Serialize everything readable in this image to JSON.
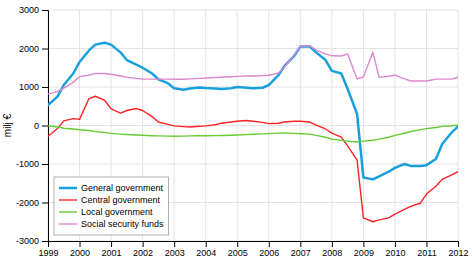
{
  "chart_data": {
    "type": "line",
    "ylabel": "milj €",
    "x": [
      1999.0,
      1999.3,
      1999.5,
      1999.8,
      2000.0,
      2000.3,
      2000.5,
      2000.8,
      2001.0,
      2001.3,
      2001.5,
      2001.8,
      2002.0,
      2002.3,
      2002.5,
      2002.8,
      2003.0,
      2003.3,
      2003.5,
      2003.8,
      2004.0,
      2004.3,
      2004.5,
      2004.8,
      2005.0,
      2005.3,
      2005.5,
      2005.8,
      2006.0,
      2006.3,
      2006.5,
      2006.8,
      2007.0,
      2007.3,
      2007.5,
      2007.8,
      2008.0,
      2008.3,
      2008.5,
      2008.8,
      2009.0,
      2009.3,
      2009.5,
      2009.8,
      2010.0,
      2010.3,
      2010.5,
      2010.8,
      2011.0,
      2011.3,
      2011.5,
      2011.8,
      2012.0
    ],
    "series": [
      {
        "name": "General government",
        "color": "#1a9fde",
        "values": [
          530,
          750,
          1050,
          1350,
          1650,
          1950,
          2100,
          2150,
          2100,
          1900,
          1700,
          1580,
          1500,
          1350,
          1200,
          1100,
          970,
          930,
          960,
          990,
          975,
          960,
          950,
          970,
          1000,
          980,
          970,
          980,
          1050,
          1300,
          1550,
          1800,
          2050,
          2050,
          1900,
          1700,
          1420,
          1350,
          950,
          300,
          -1350,
          -1400,
          -1320,
          -1200,
          -1100,
          -1000,
          -1050,
          -1050,
          -1030,
          -870,
          -480,
          -180,
          -30
        ]
      },
      {
        "name": "Central government",
        "color": "#ff2222",
        "values": [
          -280,
          -80,
          120,
          180,
          160,
          700,
          760,
          650,
          430,
          320,
          390,
          440,
          390,
          230,
          90,
          30,
          -10,
          -30,
          -40,
          -20,
          -10,
          20,
          60,
          90,
          110,
          130,
          110,
          80,
          50,
          60,
          90,
          110,
          110,
          90,
          10,
          -90,
          -200,
          -300,
          -530,
          -900,
          -2400,
          -2500,
          -2450,
          -2400,
          -2300,
          -2180,
          -2100,
          -2020,
          -1780,
          -1580,
          -1400,
          -1280,
          -1200
        ]
      },
      {
        "name": "Local government",
        "color": "#66cc33",
        "values": [
          -10,
          -40,
          -70,
          -90,
          -110,
          -130,
          -160,
          -180,
          -205,
          -225,
          -235,
          -245,
          -255,
          -265,
          -270,
          -275,
          -280,
          -275,
          -270,
          -268,
          -268,
          -263,
          -260,
          -253,
          -248,
          -238,
          -228,
          -218,
          -210,
          -198,
          -192,
          -205,
          -215,
          -225,
          -258,
          -305,
          -355,
          -385,
          -408,
          -430,
          -405,
          -383,
          -355,
          -305,
          -255,
          -202,
          -155,
          -108,
          -82,
          -52,
          -22,
          -8,
          5
        ]
      },
      {
        "name": "Social security funds",
        "color": "#dd88cc",
        "values": [
          820,
          880,
          970,
          1120,
          1270,
          1310,
          1355,
          1350,
          1330,
          1285,
          1255,
          1225,
          1205,
          1205,
          1205,
          1205,
          1200,
          1200,
          1210,
          1225,
          1235,
          1245,
          1255,
          1265,
          1275,
          1285,
          1285,
          1295,
          1305,
          1360,
          1520,
          1820,
          2060,
          2075,
          1960,
          1860,
          1810,
          1805,
          1860,
          1210,
          1260,
          1900,
          1250,
          1280,
          1310,
          1210,
          1155,
          1155,
          1155,
          1205,
          1205,
          1205,
          1255
        ]
      }
    ],
    "xlim": [
      1999,
      2012
    ],
    "ylim": [
      -3000,
      3000
    ],
    "xticks": [
      1999,
      2000,
      2001,
      2002,
      2003,
      2004,
      2005,
      2006,
      2007,
      2008,
      2009,
      2010,
      2011,
      2012
    ],
    "yticks": [
      -3000,
      -2000,
      -1000,
      0,
      1000,
      2000,
      3000
    ],
    "grid": true,
    "legend": "lower left"
  }
}
